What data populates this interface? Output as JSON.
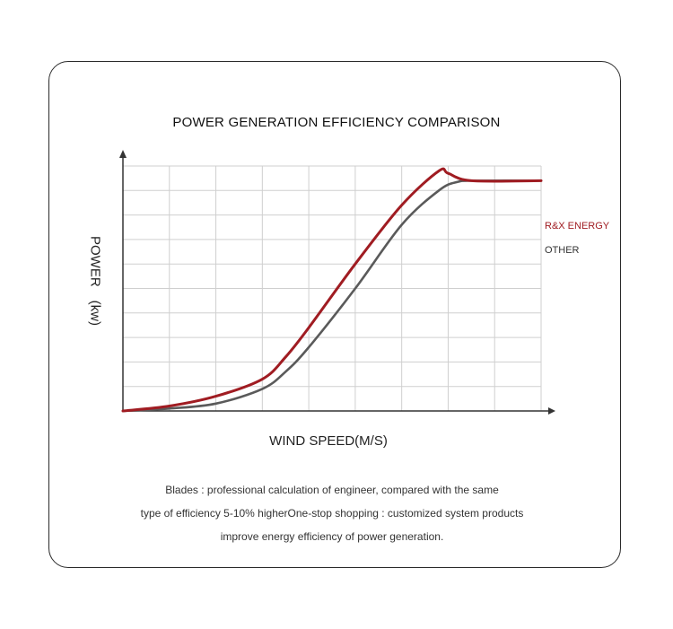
{
  "title": "POWER GENERATION EFFICIENCY COMPARISON",
  "caption": {
    "line1": "Blades : professional calculation of engineer, compared with the same",
    "line2": "type of efficiency 5-10% higherOne-stop shopping : customized system products",
    "line3": "improve energy efficiency of power generation."
  },
  "colors": {
    "red_series": "#a01c22",
    "gray_series": "#5a5a5a",
    "grid": "#cfcfcf",
    "axis": "#333333"
  },
  "chart_data": {
    "type": "line",
    "title": "POWER GENERATION EFFICIENCY COMPARISON",
    "xlabel": "WIND SPEED(M/S)",
    "ylabel": "POWER　(kw)",
    "xlim": [
      0,
      9
    ],
    "ylim": [
      0,
      10
    ],
    "grid": true,
    "legend_placement": "right",
    "series": [
      {
        "name": "R&X ENERGY",
        "color": "#a01c22",
        "x": [
          0,
          1,
          2,
          3,
          3.5,
          4,
          5,
          6,
          6.8,
          7,
          7.5,
          9
        ],
        "y": [
          0,
          0.2,
          0.6,
          1.3,
          2.2,
          3.4,
          6.0,
          8.4,
          9.8,
          9.7,
          9.4,
          9.4
        ]
      },
      {
        "name": "OTHER",
        "color": "#5a5a5a",
        "x": [
          0,
          1,
          2,
          3,
          3.5,
          4,
          5,
          6,
          6.8,
          7.2,
          7.6,
          9
        ],
        "y": [
          0,
          0.1,
          0.3,
          0.9,
          1.6,
          2.6,
          5.0,
          7.6,
          9.0,
          9.35,
          9.4,
          9.4
        ]
      }
    ]
  }
}
